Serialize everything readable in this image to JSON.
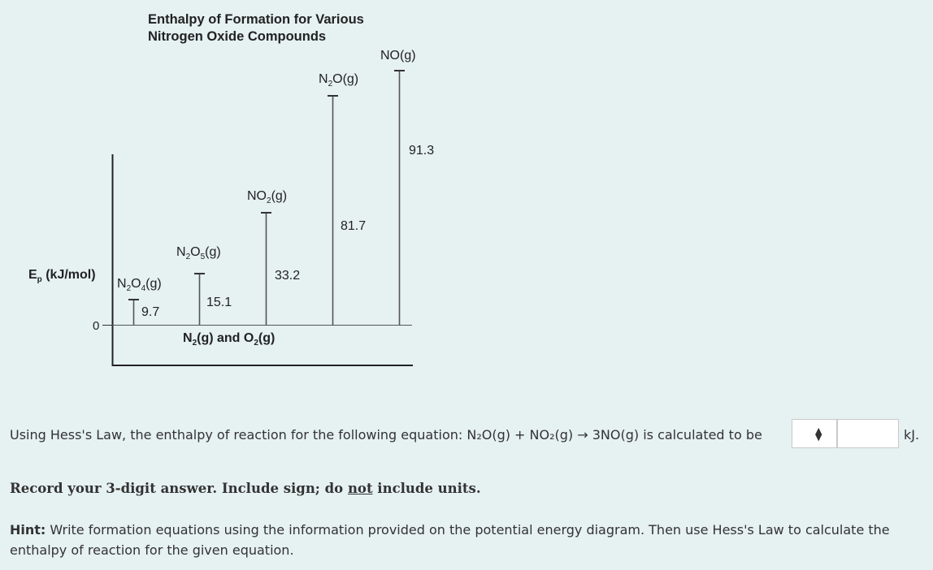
{
  "diagram": {
    "title_line1": "Enthalpy of Formation for Various",
    "title_line2": "Nitrogen Oxide Compounds",
    "y_axis_label": "Ep (kJ/mol)",
    "zero_label": "0",
    "baseline_label": "N2(g) and O2(g)",
    "compounds": [
      {
        "formula": "N2O4(g)",
        "value": "9.7"
      },
      {
        "formula": "N2O5(g)",
        "value": "15.1"
      },
      {
        "formula": "NO2(g)",
        "value": "33.2"
      },
      {
        "formula": "N2O(g)",
        "value": "81.7"
      },
      {
        "formula": "NO(g)",
        "value": "91.3"
      }
    ]
  },
  "question": {
    "text": "Using Hess's Law, the enthalpy of reaction for the following equation: N₂O(g) + NO₂(g) → 3NO(g) is calculated to be",
    "select_value": "",
    "select_icon": "updown-arrows-icon",
    "answer_value": "",
    "unit": "kJ."
  },
  "instructions": {
    "record_before": "Record your 3-digit answer. Include sign; do ",
    "record_emph": "not",
    "record_after": " include units."
  },
  "hint": {
    "label": "Hint:",
    "text": " Write formation equations using the information provided on the potential energy diagram. Then use Hess's Law to calculate the enthalpy of reaction for the given equation."
  }
}
